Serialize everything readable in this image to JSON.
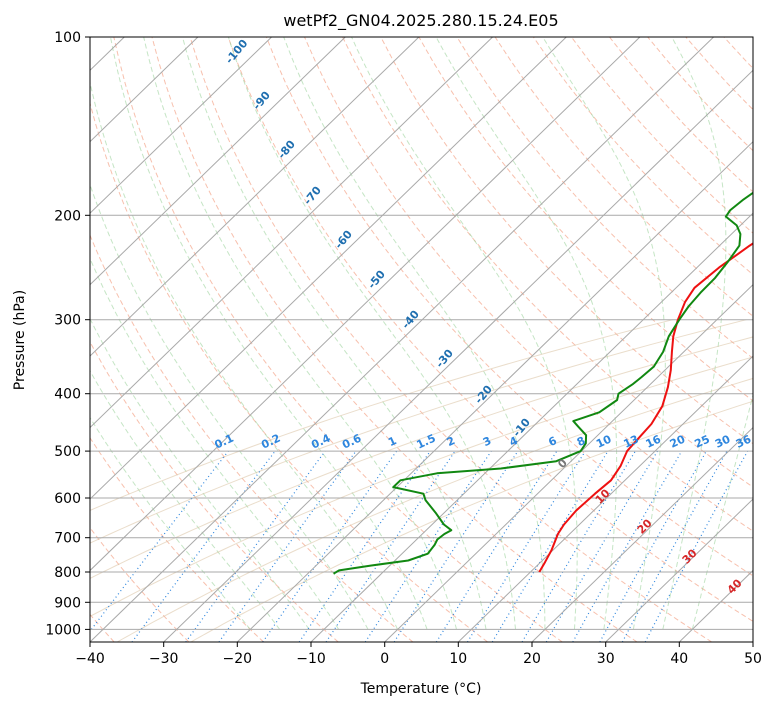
{
  "chart_data": {
    "type": "line",
    "title": "wetPf2_GN04.2025.280.15.24.E05",
    "xlabel": "Temperature (°C)",
    "ylabel": "Pressure (hPa)",
    "xlim": [
      -40,
      50
    ],
    "ylim": [
      1050,
      100
    ],
    "y_scale": "log",
    "grid": true,
    "x_ticks": [
      -40,
      -30,
      -20,
      -10,
      0,
      10,
      20,
      30,
      40,
      50
    ],
    "x_tick_labels": [
      "−40",
      "−30",
      "−20",
      "−10",
      "0",
      "10",
      "20",
      "30",
      "40",
      "50"
    ],
    "y_ticks": [
      100,
      200,
      300,
      400,
      500,
      600,
      700,
      800,
      900,
      1000
    ],
    "y_tick_labels": [
      "100",
      "200",
      "300",
      "400",
      "500",
      "600",
      "700",
      "800",
      "900",
      "1000"
    ],
    "series": [
      {
        "name": "Temperature",
        "color": "#ee1111",
        "points": [
          [
            11.2,
            800
          ],
          [
            10.6,
            770
          ],
          [
            9.8,
            735
          ],
          [
            8.4,
            690
          ],
          [
            7.9,
            665
          ],
          [
            7.6,
            630
          ],
          [
            7.8,
            590
          ],
          [
            8.1,
            560
          ],
          [
            7.4,
            530
          ],
          [
            6.2,
            500
          ],
          [
            5.9,
            470
          ],
          [
            5.7,
            450
          ],
          [
            4.7,
            420
          ],
          [
            2.8,
            390
          ],
          [
            0.8,
            365
          ],
          [
            -1.6,
            340
          ],
          [
            -3.6,
            320
          ],
          [
            -5.3,
            300
          ],
          [
            -6.8,
            280
          ],
          [
            -7.5,
            265
          ],
          [
            -7.0,
            245
          ],
          [
            -5.9,
            225
          ],
          [
            -4.8,
            212
          ],
          [
            -3.2,
            205
          ],
          [
            -2.2,
            198
          ],
          [
            -1.0,
            190
          ],
          [
            0.5,
            180
          ],
          [
            1.8,
            170
          ],
          [
            3.6,
            158
          ],
          [
            5.6,
            145
          ],
          [
            8.0,
            130
          ],
          [
            10.4,
            118
          ],
          [
            11.8,
            110
          ],
          [
            13.2,
            104
          ],
          [
            13.7,
            101
          ]
        ]
      },
      {
        "name": "Dewpoint",
        "color": "#118811",
        "points": [
          [
            -16.5,
            805
          ],
          [
            -16.2,
            795
          ],
          [
            -12.5,
            780
          ],
          [
            -8.2,
            765
          ],
          [
            -6.5,
            745
          ],
          [
            -6.8,
            720
          ],
          [
            -7.2,
            705
          ],
          [
            -7.0,
            690
          ],
          [
            -6.6,
            680
          ],
          [
            -8.4,
            665
          ],
          [
            -11.2,
            635
          ],
          [
            -14.3,
            605
          ],
          [
            -15.5,
            590
          ],
          [
            -20.5,
            575
          ],
          [
            -20.5,
            560
          ],
          [
            -16.5,
            545
          ],
          [
            -8.5,
            535
          ],
          [
            -2.0,
            520
          ],
          [
            -0.1,
            500
          ],
          [
            -0.5,
            485
          ],
          [
            -1.6,
            470
          ],
          [
            -3.8,
            455
          ],
          [
            -5.3,
            445
          ],
          [
            -3.0,
            430
          ],
          [
            -2.3,
            410
          ],
          [
            -3.0,
            400
          ],
          [
            -2.4,
            385
          ],
          [
            -2.2,
            375
          ],
          [
            -2.0,
            360
          ],
          [
            -2.8,
            340
          ],
          [
            -4.2,
            320
          ],
          [
            -5.1,
            300
          ],
          [
            -5.7,
            285
          ],
          [
            -6.0,
            270
          ],
          [
            -6.1,
            255
          ],
          [
            -6.6,
            240
          ],
          [
            -7.3,
            225
          ],
          [
            -8.8,
            215
          ],
          [
            -10.5,
            208
          ],
          [
            -13.2,
            201
          ],
          [
            -13.5,
            196
          ],
          [
            -13.2,
            188
          ],
          [
            -12.6,
            180
          ],
          [
            -12.0,
            170
          ],
          [
            -11.2,
            160
          ],
          [
            -10.1,
            150
          ],
          [
            -8.9,
            140
          ],
          [
            -6.8,
            130
          ],
          [
            -4.7,
            120
          ],
          [
            -3.4,
            113
          ],
          [
            -1.5,
            105
          ],
          [
            0.5,
            100
          ]
        ]
      }
    ],
    "isotherm_labels": [
      "-100",
      "-90",
      "-80",
      "-70",
      "-60",
      "-50",
      "-40",
      "-30",
      "-20",
      "-10"
    ],
    "mixing_ratio_labels": [
      "0.1",
      "0.2",
      "0.4",
      "0.6",
      "1",
      "1.5",
      "2",
      "3",
      "4",
      "6",
      "8",
      "10",
      "13",
      "16",
      "20",
      "25",
      "30",
      "36"
    ],
    "moist_adiabat_labels": [
      "0",
      "10",
      "20",
      "30",
      "40"
    ]
  }
}
